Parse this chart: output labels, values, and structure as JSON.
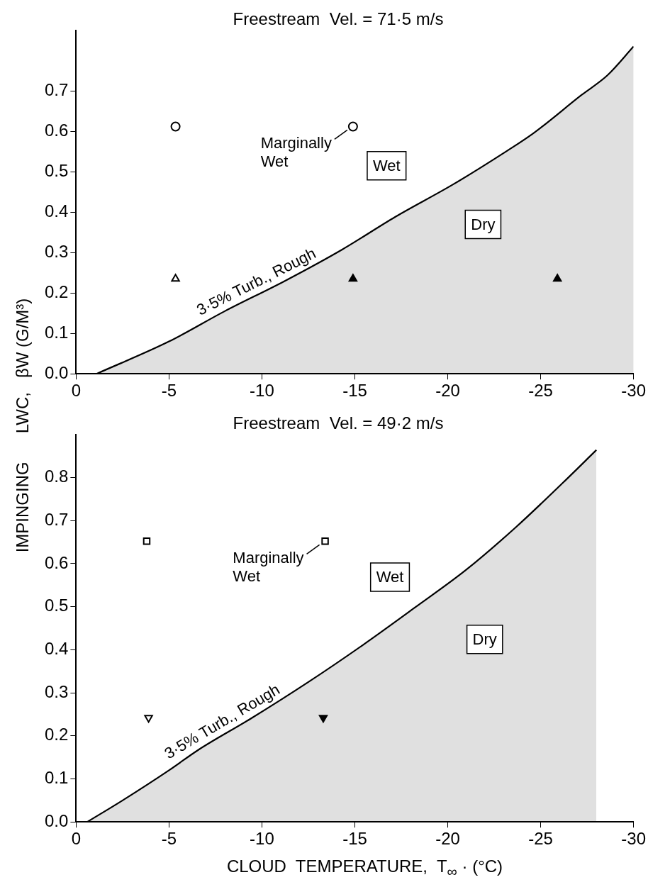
{
  "chart_data": [
    {
      "type": "scatter",
      "title": "Freestream  Vel. = 71·5 m/s",
      "ylabel": "IMPINGING      LWC,   βW (G/M³)",
      "xlim": [
        0,
        -30
      ],
      "xticks": [
        0,
        -5,
        -10,
        -15,
        -20,
        -25,
        -30
      ],
      "ylim": [
        0,
        0.85
      ],
      "yticks": [
        {
          "value": 0,
          "label": "0.0"
        },
        0.1,
        0.2,
        0.3,
        0.4,
        0.5,
        0.6,
        0.7
      ],
      "grid": false,
      "legend": false,
      "series": [
        {
          "type": "area",
          "color": "#000000",
          "x": [
            -1.1,
            -5,
            -8,
            -11.2,
            -14.3,
            -17.2,
            -20.3,
            -23.2,
            -24.6,
            -27.2,
            -28.6,
            -30
          ],
          "values": [
            0,
            0.08,
            0.155,
            0.229,
            0.307,
            0.389,
            0.469,
            0.552,
            0.595,
            0.69,
            0.739,
            0.81
          ]
        },
        {
          "type": "scatter",
          "marker": "circle",
          "color": "#ffffff",
          "x": [
            -5.35,
            -14.9
          ],
          "values": [
            0.612,
            0.612
          ]
        },
        {
          "type": "scatter",
          "marker": "triangle",
          "color": "#ffffff",
          "x": [
            -5.35
          ],
          "values": [
            0.235
          ]
        },
        {
          "type": "scatter",
          "marker": "triangle",
          "color": "#000000",
          "x": [
            -14.9,
            -25.9
          ],
          "values": [
            0.235,
            0.235
          ]
        }
      ],
      "annotations": [
        {
          "text": "Marginally Wet",
          "x": -14.9,
          "y": 0.612
        },
        "Wet",
        "Dry",
        "3·5% Turb., Rough"
      ]
    },
    {
      "type": "scatter",
      "title": "Freestream  Vel. = 49·2 m/s",
      "xlabel": "CLOUD  TEMPERATURE,  T$_{∞}$ · (°C)",
      "xlim": [
        0,
        -30
      ],
      "xticks": [
        0,
        -5,
        -10,
        -15,
        -20,
        -25,
        -30
      ],
      "ylim": [
        0,
        0.9
      ],
      "yticks": [
        {
          "value": 0,
          "label": "0.0"
        },
        0.1,
        0.2,
        0.3,
        0.4,
        0.5,
        0.6,
        0.7,
        0.8
      ],
      "grid": false,
      "legend": false,
      "series": [
        {
          "type": "area",
          "color": "#000000",
          "x": [
            -0.6,
            -2.5,
            -5,
            -6.6,
            -9.4,
            -12.5,
            -15.4,
            -18.2,
            -21,
            -23.7,
            -26.2,
            -28
          ],
          "values": [
            0,
            0.05,
            0.12,
            0.168,
            0.24,
            0.325,
            0.41,
            0.497,
            0.586,
            0.686,
            0.788,
            0.864
          ]
        },
        {
          "type": "scatter",
          "marker": "square",
          "color": "#ffffff",
          "x": [
            -3.8,
            -13.4
          ],
          "values": [
            0.652,
            0.652
          ]
        },
        {
          "type": "scatter",
          "marker": "triangle-down",
          "color": "#ffffff",
          "x": [
            -3.9
          ],
          "values": [
            0.242
          ]
        },
        {
          "type": "scatter",
          "marker": "triangle-down",
          "color": "#000000",
          "x": [
            -13.3
          ],
          "values": [
            0.242
          ]
        }
      ],
      "annotations": [
        {
          "text": "Marginally Wet",
          "x": -13.4,
          "y": 0.652
        },
        "Wet",
        "Dry",
        "3·5% Turb., Rough"
      ]
    }
  ]
}
